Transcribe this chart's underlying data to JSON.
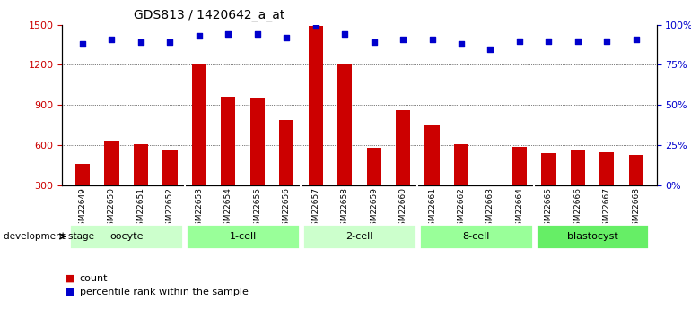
{
  "title": "GDS813 / 1420642_a_at",
  "samples": [
    "GSM22649",
    "GSM22650",
    "GSM22651",
    "GSM22652",
    "GSM22653",
    "GSM22654",
    "GSM22655",
    "GSM22656",
    "GSM22657",
    "GSM22658",
    "GSM22659",
    "GSM22660",
    "GSM22661",
    "GSM22662",
    "GSM22663",
    "GSM22664",
    "GSM22665",
    "GSM22666",
    "GSM22667",
    "GSM22668"
  ],
  "counts": [
    460,
    635,
    610,
    565,
    1210,
    960,
    955,
    790,
    1490,
    1210,
    580,
    860,
    745,
    610,
    310,
    590,
    540,
    570,
    545,
    530
  ],
  "percentiles": [
    88,
    91,
    89,
    89,
    93,
    94,
    94,
    92,
    100,
    94,
    89,
    91,
    91,
    88,
    85,
    90,
    90,
    90,
    90,
    91
  ],
  "groups": [
    {
      "name": "oocyte",
      "start": 0,
      "end": 3,
      "color": "#ccffcc"
    },
    {
      "name": "1-cell",
      "start": 4,
      "end": 7,
      "color": "#99ff99"
    },
    {
      "name": "2-cell",
      "start": 8,
      "end": 11,
      "color": "#ccffcc"
    },
    {
      "name": "8-cell",
      "start": 12,
      "end": 15,
      "color": "#99ff99"
    },
    {
      "name": "blastocyst",
      "start": 16,
      "end": 19,
      "color": "#66ee66"
    }
  ],
  "bar_color": "#cc0000",
  "dot_color": "#0000cc",
  "left_axis_color": "#cc0000",
  "right_axis_color": "#0000cc",
  "ylim_left": [
    300,
    1500
  ],
  "ylim_right": [
    0,
    100
  ],
  "yticks_left": [
    300,
    600,
    900,
    1200,
    1500
  ],
  "yticks_right": [
    0,
    25,
    50,
    75,
    100
  ],
  "grid_values": [
    600,
    900,
    1200
  ],
  "background_color": "#ffffff",
  "tick_label_area_color": "#cccccc",
  "legend_count_label": "count",
  "legend_percentile_label": "percentile rank within the sample"
}
